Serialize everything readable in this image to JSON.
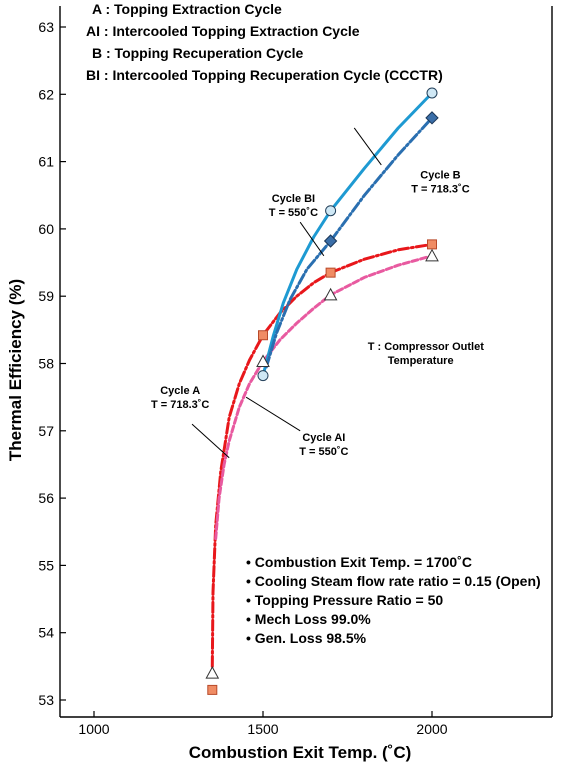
{
  "chart_data": {
    "type": "line",
    "title": "",
    "xlabel": "Combustion Exit Temp. (˚C)",
    "ylabel": "Thermal Efficiency  (%)",
    "xlim": [
      900,
      2250
    ],
    "ylim": [
      52.9,
      63.3
    ],
    "x_ticks": [
      "1000",
      "1500",
      "2000"
    ],
    "y_ticks": [
      "53",
      "54",
      "55",
      "56",
      "57",
      "58",
      "59",
      "60",
      "61",
      "62",
      "63"
    ],
    "grid": false,
    "legend_text": [
      "A : Topping Extraction Cycle",
      "AI : Intercooled Topping Extraction Cycle",
      "B : Topping Recuperation Cycle",
      "BI : Intercooled Topping Recuperation Cycle (CCCTR)"
    ],
    "series": [
      {
        "name": "Cycle A",
        "color": "#e8171b",
        "line": "dashdot",
        "marker": "square",
        "marker_color": "#f08c64",
        "x": [
          1350,
          1500,
          1700,
          2000
        ],
        "y": [
          53.15,
          58.42,
          59.35,
          59.77
        ],
        "curve": [
          [
            1350,
            53.5
          ],
          [
            1352,
            54.6
          ],
          [
            1360,
            55.6
          ],
          [
            1375,
            56.4
          ],
          [
            1400,
            57.2
          ],
          [
            1430,
            57.7
          ],
          [
            1460,
            58.05
          ],
          [
            1500,
            58.42
          ],
          [
            1550,
            58.75
          ],
          [
            1600,
            59.0
          ],
          [
            1650,
            59.2
          ],
          [
            1700,
            59.35
          ],
          [
            1800,
            59.55
          ],
          [
            1900,
            59.69
          ],
          [
            2000,
            59.77
          ]
        ]
      },
      {
        "name": "Cycle AI",
        "color": "#e85aa0",
        "line": "dashed",
        "marker": "triangle",
        "marker_color": "#ffffff",
        "x": [
          1350,
          1500,
          1700,
          2000
        ],
        "y": [
          53.4,
          58.03,
          59.02,
          59.6
        ],
        "curve": [
          [
            1360,
            55.4
          ],
          [
            1370,
            56.0
          ],
          [
            1385,
            56.5
          ],
          [
            1400,
            56.85
          ],
          [
            1430,
            57.35
          ],
          [
            1460,
            57.7
          ],
          [
            1500,
            58.03
          ],
          [
            1550,
            58.35
          ],
          [
            1600,
            58.6
          ],
          [
            1650,
            58.82
          ],
          [
            1700,
            59.02
          ],
          [
            1800,
            59.28
          ],
          [
            1900,
            59.46
          ],
          [
            2000,
            59.6
          ]
        ]
      },
      {
        "name": "Cycle BI",
        "color": "#1e9ad2",
        "line": "solid",
        "marker": "circle",
        "marker_color": "#cfe8f5",
        "x": [
          1500,
          1700,
          2000
        ],
        "y": [
          57.82,
          60.27,
          62.02
        ],
        "curve": [
          [
            1500,
            57.82
          ],
          [
            1530,
            58.4
          ],
          [
            1560,
            58.9
          ],
          [
            1600,
            59.4
          ],
          [
            1650,
            59.88
          ],
          [
            1700,
            60.27
          ],
          [
            1800,
            60.9
          ],
          [
            1900,
            61.5
          ],
          [
            2000,
            62.02
          ]
        ]
      },
      {
        "name": "Cycle B",
        "color": "#2a6fb0",
        "line": "dashdot",
        "marker": "diamond",
        "marker_color": "#3a6ea8",
        "x": [
          1700,
          2000
        ],
        "y": [
          59.82,
          61.65
        ],
        "curve": [
          [
            1510,
            57.95
          ],
          [
            1540,
            58.45
          ],
          [
            1580,
            58.95
          ],
          [
            1630,
            59.4
          ],
          [
            1700,
            59.82
          ],
          [
            1800,
            60.5
          ],
          [
            1900,
            61.1
          ],
          [
            2000,
            61.65
          ]
        ]
      }
    ],
    "annotations": [
      {
        "lines": [
          "Cycle BI",
          "T = 550˚C"
        ],
        "x": 1590,
        "y": 60.4
      },
      {
        "lines": [
          "Cycle B",
          "T = 718.3˚C"
        ],
        "x": 2025,
        "y": 60.75
      },
      {
        "lines": [
          "Cycle A",
          "T = 718.3˚C"
        ],
        "x": 1255,
        "y": 57.55
      },
      {
        "lines": [
          "Cycle AI",
          "T = 550˚C"
        ],
        "x": 1680,
        "y": 56.85
      },
      {
        "lines": [
          "T : Compressor Outlet",
          "Temperature"
        ],
        "x": 1810,
        "y": 58.2
      }
    ],
    "conditions": [
      "• Combustion Exit Temp. = 1700˚C",
      "• Cooling Steam flow rate ratio = 0.15 (Open)",
      "• Topping Pressure Ratio = 50",
      "• Mech Loss  99.0%",
      "• Gen. Loss  98.5%"
    ]
  }
}
